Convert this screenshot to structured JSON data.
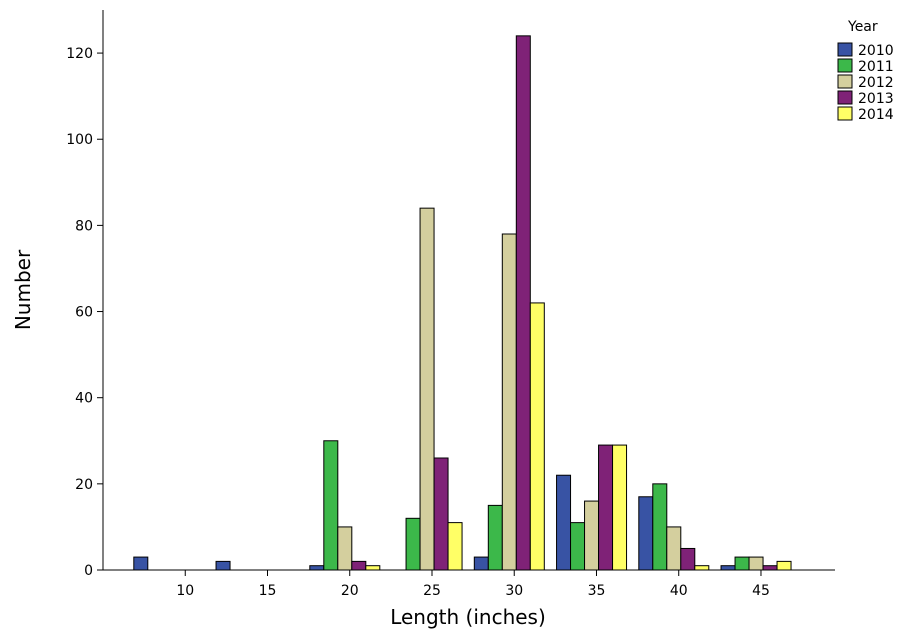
{
  "chart_data": {
    "type": "bar",
    "xlabel": "Length (inches)",
    "ylabel": "Number",
    "ylim": [
      0,
      130
    ],
    "yticks": [
      0,
      20,
      40,
      60,
      80,
      100,
      120
    ],
    "xlim": [
      5,
      49.5
    ],
    "xticks": [
      10,
      15,
      20,
      25,
      30,
      35,
      40,
      45
    ],
    "bin_centers": [
      9,
      14,
      19.7,
      24.7,
      29.7,
      34.7,
      39.7,
      44.7
    ],
    "grid": false,
    "legend": {
      "title": "Year",
      "position": "top-right"
    },
    "series": [
      {
        "name": "2010",
        "color": "#3853a4",
        "values": [
          3,
          2,
          1,
          0,
          3,
          22,
          17,
          1
        ]
      },
      {
        "name": "2011",
        "color": "#3cb84a",
        "values": [
          0,
          0,
          30,
          12,
          15,
          11,
          20,
          3
        ]
      },
      {
        "name": "2012",
        "color": "#d4cf9e",
        "values": [
          0,
          0,
          10,
          84,
          78,
          16,
          10,
          3
        ]
      },
      {
        "name": "2013",
        "color": "#7f2277",
        "values": [
          0,
          0,
          2,
          26,
          124,
          29,
          5,
          1
        ]
      },
      {
        "name": "2014",
        "color": "#ffff66",
        "values": [
          0,
          0,
          1,
          11,
          62,
          29,
          1,
          2
        ]
      }
    ]
  }
}
